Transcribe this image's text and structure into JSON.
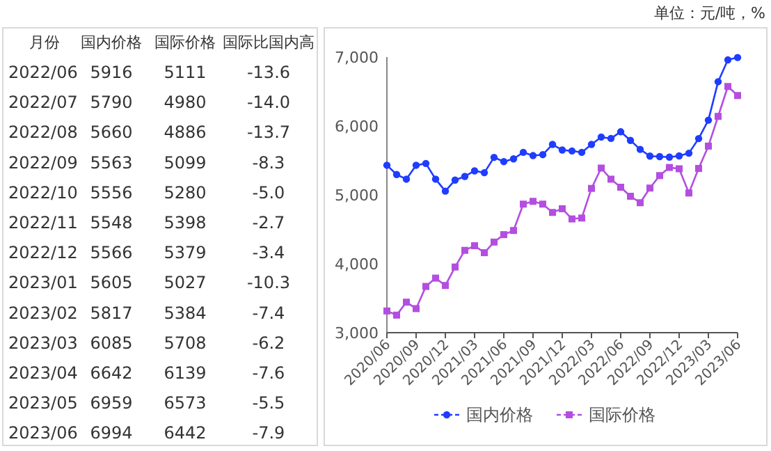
{
  "chart_data": [
    {
      "type": "other",
      "xlabel": "月份",
      "data_labels": true,
      "categories": [
        "2022/06",
        "2022/07",
        "2022/08",
        "2022/09",
        "2022/10",
        "2022/11",
        "2022/12",
        "2023/01",
        "2023/02",
        "2023/03",
        "2023/04",
        "2023/05",
        "2023/06"
      ],
      "series": [
        {
          "name": "国内价格",
          "values": [
            5916,
            5790,
            5660,
            5563,
            5556,
            5548,
            5566,
            5605,
            5817,
            6085,
            6642,
            6959,
            6994
          ]
        },
        {
          "name": "国际价格",
          "values": [
            5111,
            4980,
            4886,
            5099,
            5280,
            5398,
            5379,
            5027,
            5384,
            5708,
            6139,
            6573,
            6442
          ]
        },
        {
          "name": "国际比国内高",
          "values": [
            -13.6,
            -14.0,
            -13.7,
            -8.3,
            -5.0,
            -2.7,
            -3.4,
            -10.3,
            -7.4,
            -6.2,
            -7.6,
            -5.5,
            -7.9
          ],
          "value_labels": [
            "-13.6",
            "-14.0",
            "-13.7",
            "-8.3",
            "-5.0",
            "-2.7",
            "-3.4",
            "-10.3",
            "-7.4",
            "-6.2",
            "-7.6",
            "-5.5",
            "-7.9"
          ]
        }
      ]
    },
    {
      "type": "line",
      "annotations": [
        "单位：元/吨，%"
      ],
      "categories": [
        "2020/06",
        null,
        null,
        "2020/09",
        null,
        null,
        "2020/12",
        null,
        null,
        "2021/03",
        null,
        null,
        "2021/06",
        null,
        null,
        "2021/09",
        null,
        null,
        "2021/12",
        null,
        null,
        "2022/03",
        null,
        null,
        "2022/06",
        null,
        null,
        "2022/09",
        null,
        null,
        "2022/12",
        null,
        null,
        "2023/03",
        null,
        null,
        "2023/06"
      ],
      "ylim": [
        3000,
        7000
      ],
      "yticks": [
        {
          "value": 3000,
          "label": "3,000"
        },
        {
          "value": 4000,
          "label": "4,000"
        },
        {
          "value": 5000,
          "label": "5,000"
        },
        {
          "value": 6000,
          "label": "6,000"
        },
        {
          "value": 7000,
          "label": "7,000"
        }
      ],
      "grid": false,
      "legend": "bottom",
      "line_style": "solid",
      "series": [
        {
          "name": "国内价格",
          "color": "#1f3cff",
          "marker": "circle",
          "values": [
            5430,
            5295,
            5228,
            5430,
            5456,
            5228,
            5054,
            5215,
            5268,
            5349,
            5322,
            5544,
            5483,
            5523,
            5617,
            5570,
            5584,
            5732,
            5651,
            5638,
            5617,
            5732,
            5839,
            5819,
            5916,
            5790,
            5660,
            5563,
            5556,
            5548,
            5566,
            5605,
            5817,
            6085,
            6642,
            6959,
            6994
          ]
        },
        {
          "name": "国际价格",
          "color": "#b44ee0",
          "marker": "square",
          "values": [
            3315,
            3255,
            3443,
            3349,
            3671,
            3792,
            3685,
            3953,
            4195,
            4262,
            4161,
            4315,
            4423,
            4483,
            4866,
            4906,
            4866,
            4745,
            4799,
            4651,
            4664,
            5094,
            5389,
            5228,
            5111,
            4980,
            4886,
            5099,
            5280,
            5398,
            5379,
            5027,
            5384,
            5708,
            6139,
            6573,
            6442
          ]
        }
      ]
    }
  ]
}
